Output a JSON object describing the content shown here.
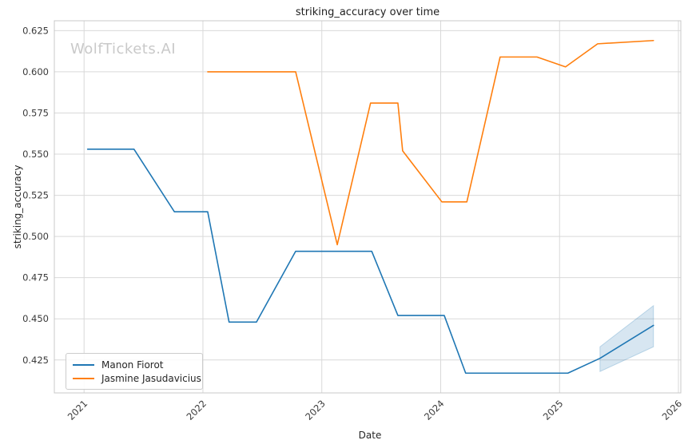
{
  "figure": {
    "title": "striking_accuracy over time",
    "watermark": "WolfTickets.AI"
  },
  "chart_data": {
    "type": "line",
    "title": "striking_accuracy over time",
    "xlabel": "Date",
    "ylabel": "striking_accuracy",
    "x_ticks": [
      2021,
      2022,
      2023,
      2024,
      2025,
      2026
    ],
    "y_ticks": [
      0.425,
      0.45,
      0.475,
      0.5,
      0.525,
      0.55,
      0.575,
      0.6,
      0.625
    ],
    "xlim": [
      2020.75,
      2026.02
    ],
    "ylim": [
      0.405,
      0.631
    ],
    "grid": true,
    "legend_position": "lower-left",
    "background_color": "#ffffff",
    "grid_color": "#d9d9d9",
    "spine_color": "#c8c8c8",
    "series": [
      {
        "name": "Manon Fiorot",
        "color": "#1f77b4",
        "x": [
          2021.03,
          2021.42,
          2021.76,
          2022.04,
          2022.22,
          2022.45,
          2022.78,
          2023.42,
          2023.64,
          2024.03,
          2024.21,
          2025.07,
          2025.34,
          2025.79
        ],
        "y": [
          0.553,
          0.553,
          0.515,
          0.515,
          0.448,
          0.448,
          0.491,
          0.491,
          0.452,
          0.452,
          0.417,
          0.417,
          0.426,
          0.446
        ]
      },
      {
        "name": "Jasmine Jasudavicius",
        "color": "#ff7f0e",
        "x": [
          2022.04,
          2022.78,
          2023.13,
          2023.41,
          2023.64,
          2023.68,
          2024.01,
          2024.22,
          2024.5,
          2024.81,
          2025.05,
          2025.32,
          2025.79
        ],
        "y": [
          0.6,
          0.6,
          0.495,
          0.581,
          0.581,
          0.552,
          0.521,
          0.521,
          0.609,
          0.609,
          0.603,
          0.617,
          0.619
        ]
      }
    ],
    "forecast_band": {
      "series": "Manon Fiorot",
      "color": "#1f77b4",
      "opacity": 0.18,
      "x": [
        2025.34,
        2025.79
      ],
      "lower": [
        0.418,
        0.433
      ],
      "upper": [
        0.433,
        0.458
      ]
    }
  },
  "legend": {
    "items": [
      {
        "label": "Manon Fiorot",
        "color": "#1f77b4"
      },
      {
        "label": "Jasmine Jasudavicius",
        "color": "#ff7f0e"
      }
    ]
  }
}
